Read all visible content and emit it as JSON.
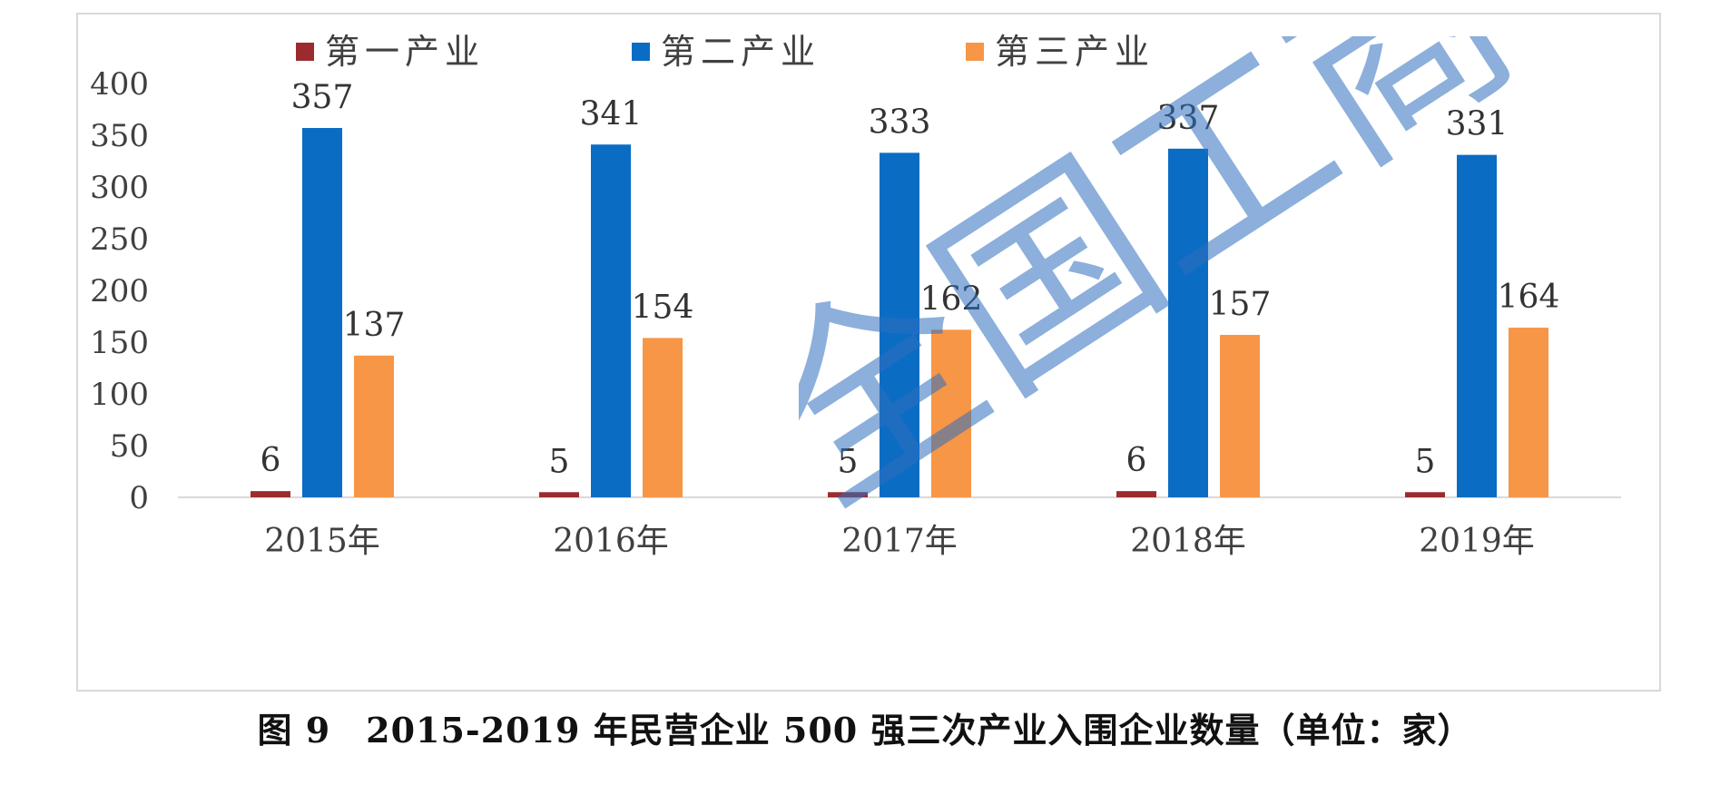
{
  "caption": "图 9　2015-2019 年民营企业 500 强三次产业入围企业数量（单位：家）",
  "watermark_text": "全国工商联",
  "chart_data": {
    "type": "bar",
    "categories": [
      "2015年",
      "2016年",
      "2017年",
      "2018年",
      "2019年"
    ],
    "series": [
      {
        "name": "第一产业",
        "color": "#9b2b2e",
        "values": [
          6,
          5,
          5,
          6,
          5
        ]
      },
      {
        "name": "第二产业",
        "color": "#0b6cc4",
        "values": [
          357,
          341,
          333,
          337,
          331
        ]
      },
      {
        "name": "第三产业",
        "color": "#f79646",
        "values": [
          137,
          154,
          162,
          157,
          164
        ]
      }
    ],
    "yticks": [
      0,
      50,
      100,
      150,
      200,
      250,
      300,
      350,
      400
    ],
    "ylim": [
      0,
      400
    ],
    "legend_position": "top",
    "grid": false,
    "title": "",
    "xlabel": "",
    "ylabel": ""
  }
}
